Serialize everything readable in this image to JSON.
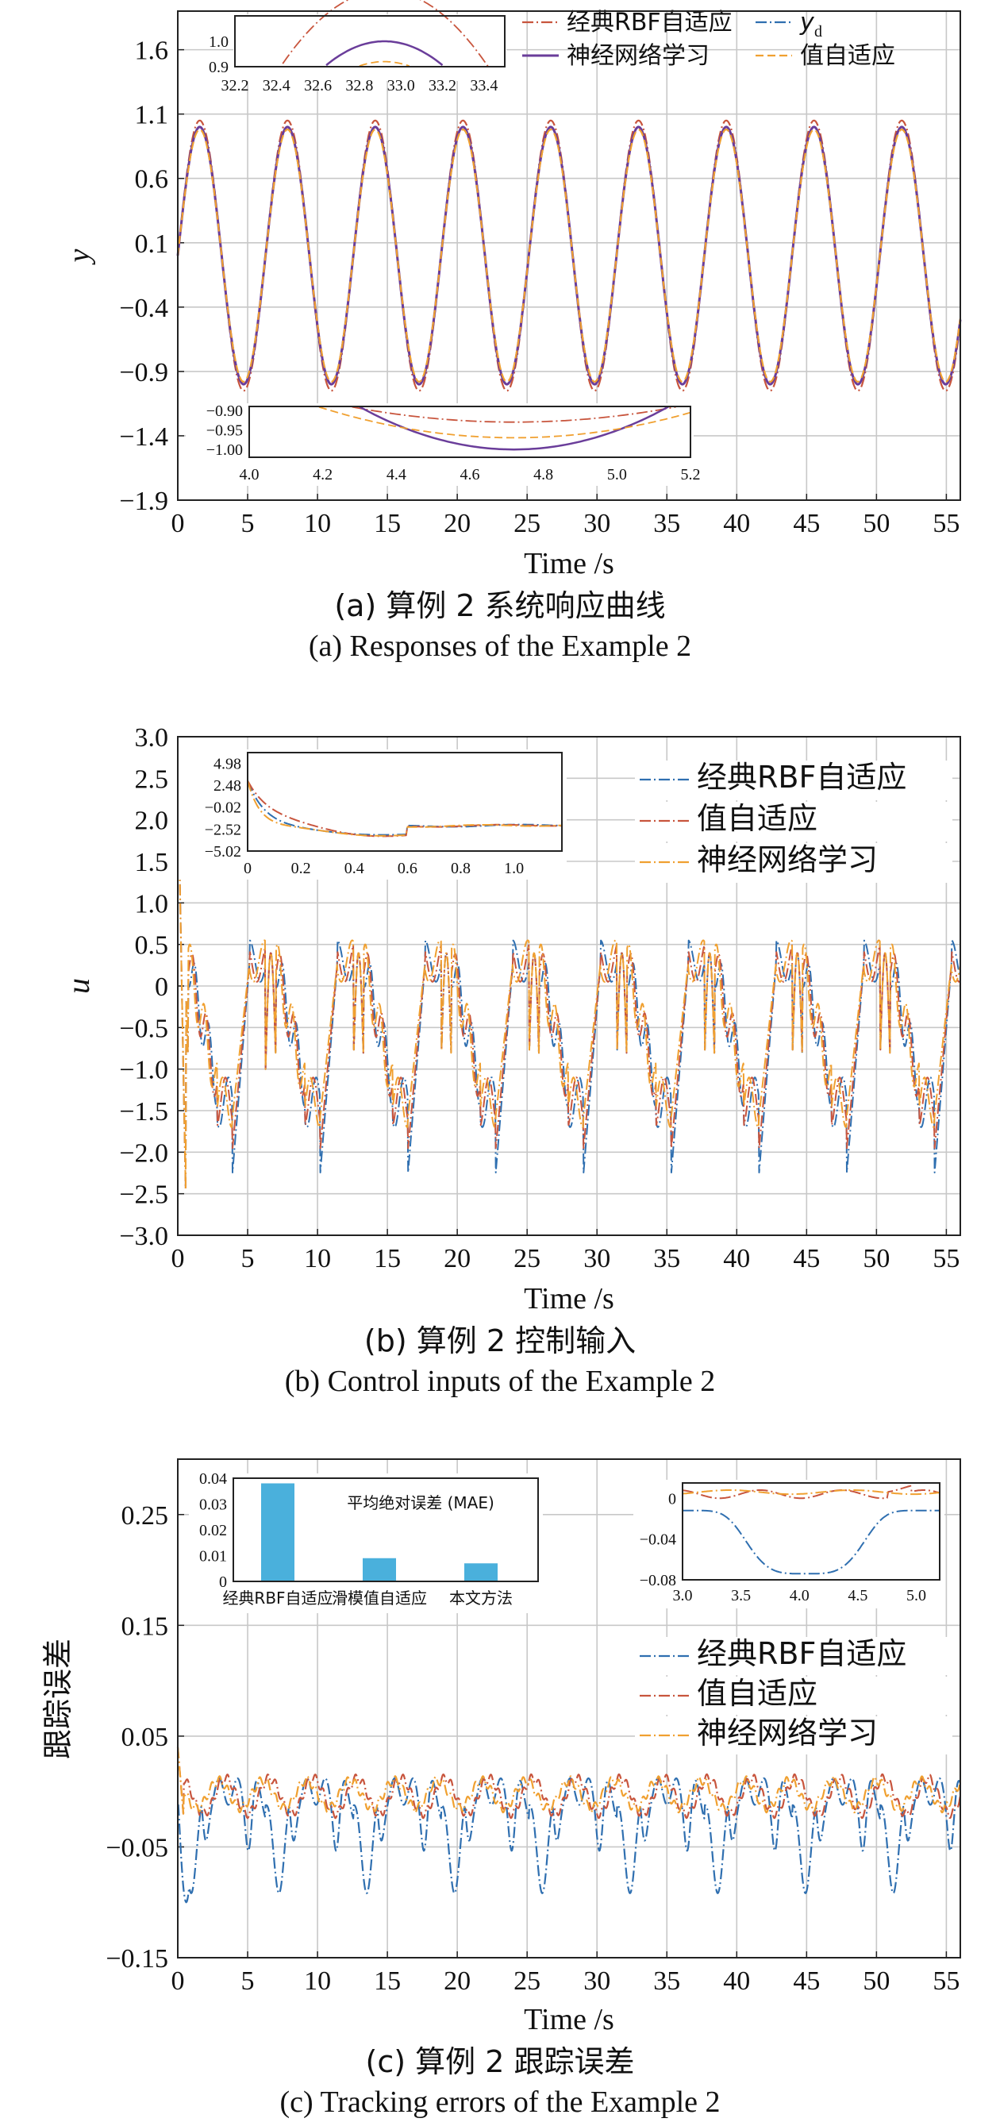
{
  "colors": {
    "rbf": "#c8553d",
    "yd": "#2f6fb0",
    "nn": "#6a3d9a",
    "val": "#f0a030",
    "grid": "#c8c8c8",
    "bar": "#4ab0dc"
  },
  "chart_data": [
    {
      "type": "line",
      "id": "a",
      "caption_cn": "(a) 算例 2 系统响应曲线",
      "caption_en": "(a) Responses of the Example 2",
      "xlabel": "Time /s",
      "ylabel": "y",
      "xlim": [
        0,
        56
      ],
      "ylim": [
        -1.9,
        1.9
      ],
      "xticks": [
        "0",
        "5",
        "10",
        "15",
        "20",
        "25",
        "30",
        "35",
        "40",
        "45",
        "50",
        "55"
      ],
      "yticks": [
        "1.6",
        "1.1",
        "0.6",
        "0.1",
        "−0.4",
        "−0.9",
        "−1.4",
        "−1.9"
      ],
      "grid": true,
      "legend": [
        "经典RBF自适应",
        "y",
        "神经网络学习",
        "值自适应"
      ],
      "legend_subscript": "d",
      "legend_position": "top-right",
      "signal": {
        "shape": "sine",
        "amplitude": 1.0,
        "period": 6.28,
        "x_range": [
          0,
          56
        ]
      },
      "series": [
        {
          "name": "经典RBF自适应",
          "color_key": "rbf",
          "style": "dash-dot",
          "amplitude_scale": 1.05
        },
        {
          "name": "y_d",
          "color_key": "yd",
          "style": "dash-dot",
          "amplitude_scale": 1.0
        },
        {
          "name": "神经网络学习",
          "color_key": "nn",
          "style": "solid",
          "amplitude_scale": 1.0
        },
        {
          "name": "值自适应",
          "color_key": "val",
          "style": "dashed",
          "amplitude_scale": 0.98
        }
      ],
      "insets": [
        {
          "xticks": [
            "32.2",
            "32.4",
            "32.6",
            "32.8",
            "33.0",
            "33.2",
            "33.4"
          ],
          "yticks": [
            "1.0",
            "0.9"
          ],
          "xlim": [
            32.2,
            33.5
          ],
          "ylim": [
            0.9,
            1.1
          ]
        },
        {
          "xticks": [
            "4.0",
            "4.2",
            "4.4",
            "4.6",
            "4.8",
            "5.0",
            "5.2"
          ],
          "yticks": [
            "−0.90",
            "−0.95",
            "−1.00"
          ],
          "xlim": [
            4.0,
            5.2
          ],
          "ylim": [
            -1.02,
            -0.89
          ]
        }
      ]
    },
    {
      "type": "line",
      "id": "b",
      "caption_cn": "(b) 算例 2 控制输入",
      "caption_en": "(b) Control inputs of the Example 2",
      "xlabel": "Time /s",
      "ylabel": "u",
      "xlim": [
        0,
        56
      ],
      "ylim": [
        -3.0,
        3.0
      ],
      "xticks": [
        "0",
        "5",
        "10",
        "15",
        "20",
        "25",
        "30",
        "35",
        "40",
        "45",
        "50",
        "55"
      ],
      "yticks": [
        "3.0",
        "2.5",
        "2.0",
        "1.5",
        "1.0",
        "0.5",
        "0",
        "−0.5",
        "−1.0",
        "−1.5",
        "−2.0",
        "−2.5",
        "−3.0"
      ],
      "grid": true,
      "legend": [
        "经典RBF自适应",
        "值自适应",
        "神经网络学习"
      ],
      "legend_position": "top-right",
      "signal": {
        "shape": "periodic-pulse",
        "period": 6.28,
        "high": 0.6,
        "low": -2.0,
        "x_range": [
          0,
          56
        ]
      },
      "series": [
        {
          "name": "经典RBF自适应",
          "color_key": "yd",
          "style": "dash-dot",
          "low_value": -2.3
        },
        {
          "name": "值自适应",
          "color_key": "rbf",
          "style": "dash-dot",
          "low_value": -2.0
        },
        {
          "name": "神经网络学习",
          "color_key": "val",
          "style": "dash-dot",
          "low_value": -1.6
        }
      ],
      "inset": {
        "xticks": [
          "0",
          "0.2",
          "0.4",
          "0.6",
          "0.8",
          "1.0"
        ],
        "yticks": [
          "4.98",
          "2.48",
          "−0.02",
          "−2.52",
          "−5.02"
        ],
        "xlim": [
          0,
          1.18
        ],
        "ylim": [
          -5.02,
          6.2
        ]
      }
    },
    {
      "type": "line",
      "id": "c",
      "caption_cn": "(c) 算例 2 跟踪误差",
      "caption_en": "(c) Tracking errors of the Example 2",
      "xlabel": "Time /s",
      "ylabel": "跟踪误差",
      "xlim": [
        0,
        56
      ],
      "ylim": [
        -0.15,
        0.3
      ],
      "xticks": [
        "0",
        "5",
        "10",
        "15",
        "20",
        "25",
        "30",
        "35",
        "40",
        "45",
        "50",
        "55"
      ],
      "yticks": [
        "0.25",
        "0.15",
        "0.05",
        "−0.05",
        "−0.15"
      ],
      "grid": true,
      "legend": [
        "经典RBF自适应",
        "值自适应",
        "神经网络学习"
      ],
      "legend_position": "center-right",
      "series": [
        {
          "name": "经典RBF自适应",
          "color_key": "yd",
          "style": "dash-dot",
          "trough": -0.08,
          "peak": 0.0
        },
        {
          "name": "值自适应",
          "color_key": "rbf",
          "style": "dash-dot",
          "trough": -0.02,
          "peak": 0.012
        },
        {
          "name": "神经网络学习",
          "color_key": "val",
          "style": "dash-dot",
          "trough": -0.015,
          "peak": 0.01
        }
      ],
      "inset_bar": {
        "type": "bar",
        "title": "平均绝对误差 (MAE)",
        "categories": [
          "经典RBF自适应",
          "滑模值自适应",
          "本文方法"
        ],
        "values": [
          0.038,
          0.009,
          0.007
        ],
        "yticks": [
          "0.04",
          "0.03",
          "0.02",
          "0.01",
          "0"
        ],
        "ylim": [
          0,
          0.04
        ]
      },
      "inset_line": {
        "xticks": [
          "3.0",
          "3.5",
          "4.0",
          "4.5",
          "5.0"
        ],
        "yticks": [
          "0",
          "−0.04",
          "−0.08"
        ],
        "xlim": [
          3.0,
          5.2
        ],
        "ylim": [
          -0.08,
          0.015
        ]
      }
    }
  ]
}
